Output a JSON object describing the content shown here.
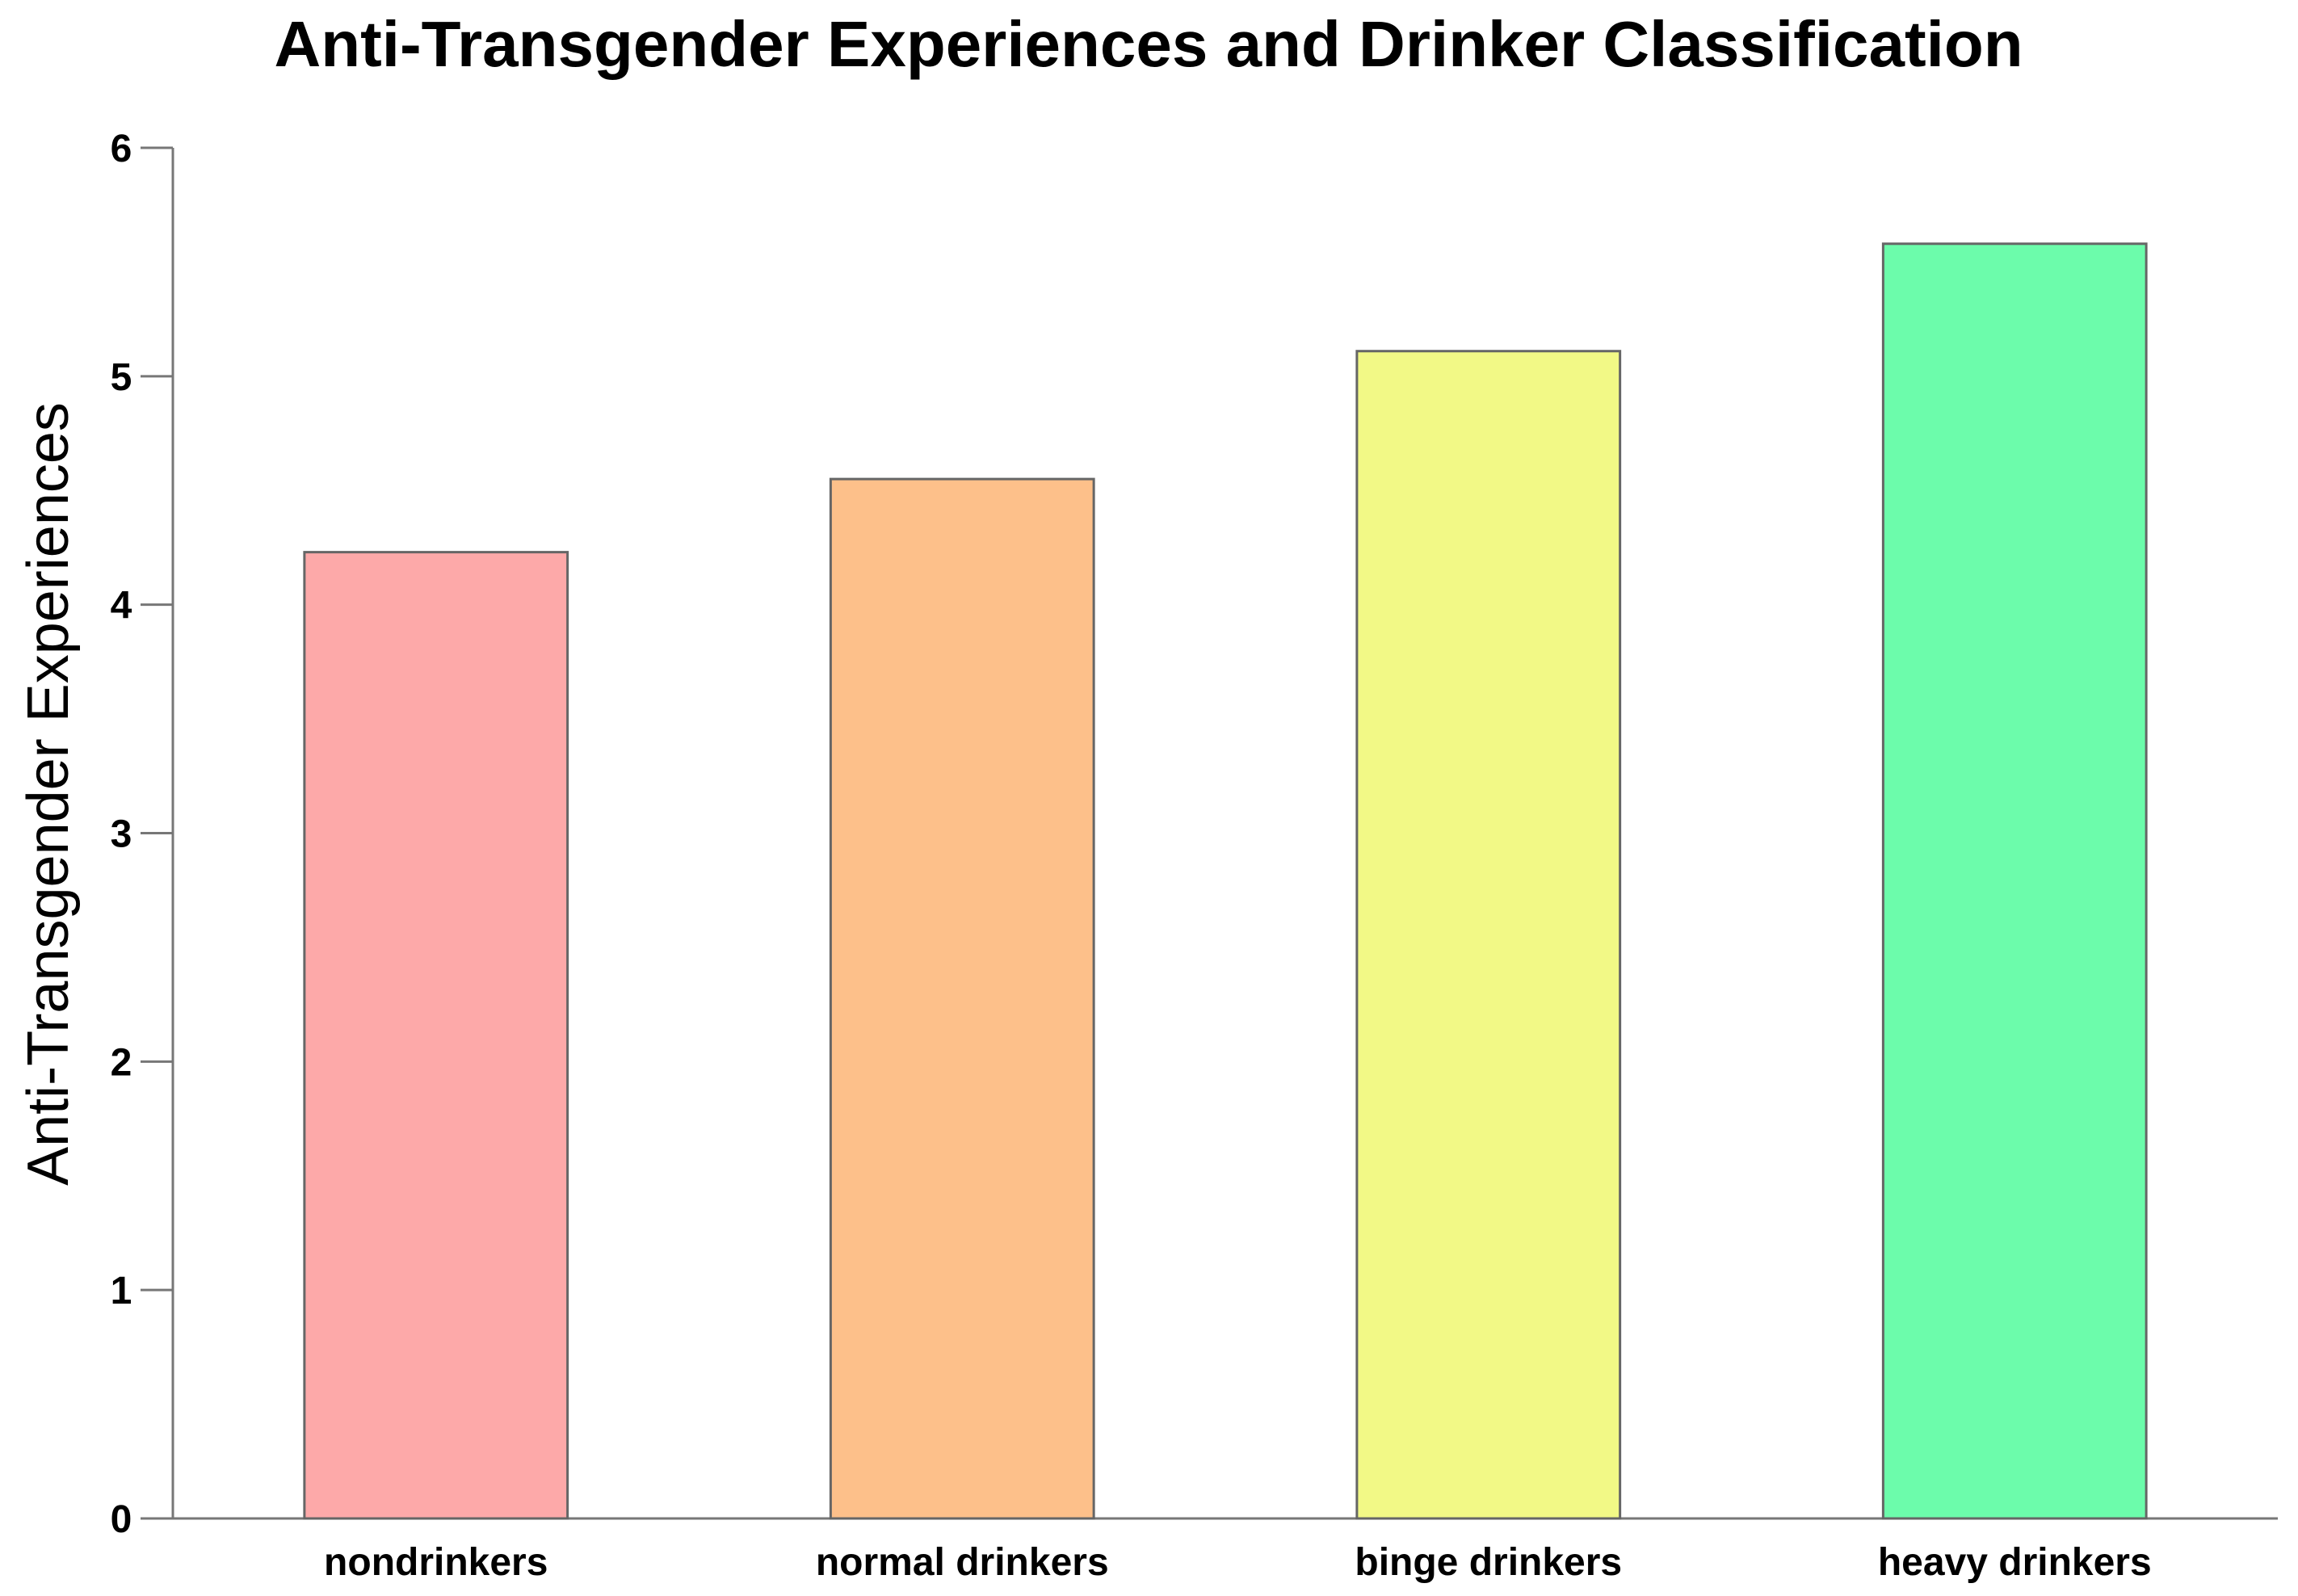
{
  "chart_data": {
    "type": "bar",
    "title": "Anti-Transgender Experiences and Drinker Classification",
    "xlabel": "",
    "ylabel": "Anti-Transgender Experiences",
    "categories": [
      "nondrinkers",
      "normal drinkers",
      "binge drinkers",
      "heavy drinkers"
    ],
    "values": [
      4.23,
      4.55,
      5.11,
      5.58
    ],
    "colors": [
      "#fda9a9",
      "#fdc08a",
      "#f2f986",
      "#6cfcab"
    ],
    "ylim": [
      0,
      6
    ],
    "yticks": [
      0,
      1,
      2,
      3,
      4,
      5,
      6
    ],
    "grid": false,
    "legend": "none"
  }
}
